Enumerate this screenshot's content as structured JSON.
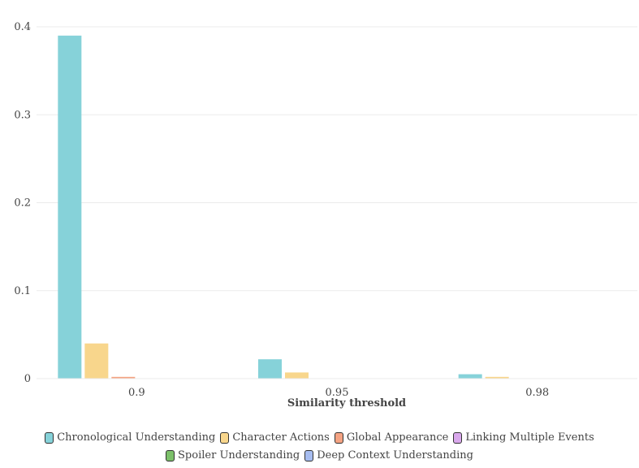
{
  "chart_data": {
    "type": "bar",
    "xlabel": "Similarity threshold",
    "ylabel": "",
    "categories": [
      "0.9",
      "0.95",
      "0.98"
    ],
    "ylim": [
      0,
      0.4
    ],
    "yticks": [
      "0",
      "0.1",
      "0.2",
      "0.3",
      "0.4"
    ],
    "grid": true,
    "legend_position": "bottom",
    "series": [
      {
        "name": "Chronological Understanding",
        "color": "#86d2d9",
        "values": [
          0.39,
          0.022,
          0.005
        ]
      },
      {
        "name": "Character Actions",
        "color": "#f8d68c",
        "values": [
          0.04,
          0.007,
          0.002
        ]
      },
      {
        "name": "Global Appearance",
        "color": "#f4a383",
        "values": [
          0.002,
          0,
          0
        ]
      },
      {
        "name": "Linking Multiple Events",
        "color": "#d9a8ec",
        "values": [
          0,
          0,
          0
        ]
      },
      {
        "name": "Spoiler Understanding",
        "color": "#7cc06a",
        "values": [
          0,
          0,
          0
        ]
      },
      {
        "name": "Deep Context Understanding",
        "color": "#a7bdf0",
        "values": [
          0,
          0,
          0
        ]
      }
    ]
  }
}
